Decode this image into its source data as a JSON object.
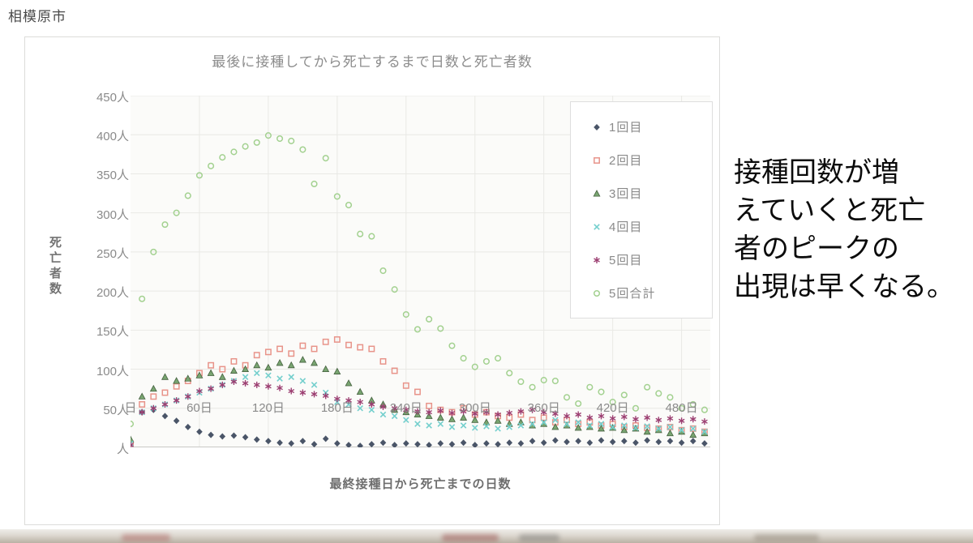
{
  "page": {
    "header_label": "相模原市"
  },
  "annotation": {
    "text": "接種回数が増\nえていくと死亡\n者のピークの\n出現は早くなる。"
  },
  "chart_data": {
    "type": "scatter",
    "title": "最後に接種してから死亡するまで日数と死亡者数",
    "xlabel": "最終接種日から死亡までの日数",
    "ylabel": "死亡者数",
    "xlim": [
      0,
      505
    ],
    "ylim": [
      0,
      450
    ],
    "grid": true,
    "legend_position": "right-top",
    "x_ticks": [
      {
        "value": 0,
        "label": "日"
      },
      {
        "value": 60,
        "label": "60日"
      },
      {
        "value": 120,
        "label": "120日"
      },
      {
        "value": 180,
        "label": "180日"
      },
      {
        "value": 240,
        "label": "240日"
      },
      {
        "value": 300,
        "label": "300日"
      },
      {
        "value": 360,
        "label": "360日"
      },
      {
        "value": 420,
        "label": "420日"
      },
      {
        "value": 480,
        "label": "480日"
      }
    ],
    "y_ticks": [
      {
        "value": 450,
        "label": "450人"
      },
      {
        "value": 400,
        "label": "400人"
      },
      {
        "value": 350,
        "label": "350人"
      },
      {
        "value": 300,
        "label": "300人"
      },
      {
        "value": 250,
        "label": "250人"
      },
      {
        "value": 200,
        "label": "200人"
      },
      {
        "value": 150,
        "label": "150人"
      },
      {
        "value": 100,
        "label": "100人"
      },
      {
        "value": 50,
        "label": "50人"
      },
      {
        "value": 0,
        "label": "人"
      }
    ],
    "x_start": 0,
    "x_step": 10,
    "series": [
      {
        "name": "1回目",
        "marker": "diamond",
        "color": "#4a5568",
        "values": [
          8,
          45,
          48,
          40,
          34,
          26,
          20,
          16,
          14,
          15,
          13,
          10,
          8,
          6,
          5,
          8,
          4,
          11,
          5,
          3,
          2,
          4,
          6,
          3,
          5,
          4,
          3,
          5,
          4,
          6,
          3,
          5,
          4,
          6,
          5,
          8,
          6,
          9,
          7,
          8,
          6,
          9,
          7,
          8,
          6,
          9,
          7,
          8,
          6,
          8,
          5,
          7
        ]
      },
      {
        "name": "2回目",
        "marker": "square",
        "color": "#e8948a",
        "values": [
          5,
          55,
          65,
          70,
          78,
          85,
          95,
          105,
          100,
          110,
          105,
          118,
          122,
          126,
          120,
          130,
          126,
          135,
          138,
          131,
          128,
          126,
          110,
          98,
          79,
          71,
          53,
          48,
          45,
          50,
          42,
          45,
          40,
          38,
          42,
          35,
          38,
          32,
          35,
          30,
          32,
          28,
          30,
          26,
          28,
          25,
          24,
          26,
          22,
          24,
          20,
          22
        ]
      },
      {
        "name": "3回目",
        "marker": "triangle",
        "color": "#79a571",
        "values": [
          10,
          65,
          75,
          90,
          85,
          88,
          92,
          95,
          90,
          98,
          100,
          105,
          102,
          108,
          105,
          112,
          108,
          100,
          97,
          82,
          71,
          60,
          55,
          48,
          45,
          42,
          40,
          38,
          36,
          38,
          35,
          32,
          34,
          30,
          32,
          28,
          30,
          26,
          28,
          25,
          26,
          24,
          25,
          22,
          24,
          20,
          22,
          18,
          20,
          16,
          18,
          15
        ]
      },
      {
        "name": "4回目",
        "marker": "x",
        "color": "#74cfcd",
        "values": [
          5,
          45,
          50,
          55,
          60,
          65,
          70,
          75,
          80,
          85,
          90,
          95,
          92,
          88,
          90,
          85,
          80,
          70,
          58,
          55,
          50,
          48,
          42,
          40,
          35,
          30,
          28,
          30,
          26,
          28,
          25,
          27,
          24,
          26,
          28,
          30,
          32,
          35,
          30,
          32,
          28,
          30,
          26,
          28,
          25,
          27,
          24,
          26,
          22,
          24,
          20,
          22
        ]
      },
      {
        "name": "5回目",
        "marker": "asterisk",
        "color": "#9c3f72",
        "values": [
          3,
          45,
          50,
          55,
          60,
          65,
          72,
          75,
          80,
          84,
          82,
          80,
          78,
          76,
          72,
          70,
          68,
          66,
          62,
          60,
          58,
          55,
          52,
          50,
          48,
          46,
          45,
          47,
          44,
          46,
          43,
          45,
          42,
          44,
          46,
          48,
          45,
          43,
          40,
          42,
          38,
          40,
          37,
          39,
          36,
          38,
          35,
          37,
          34,
          36,
          33,
          35
        ]
      },
      {
        "name": "5回合計",
        "marker": "circle",
        "color": "#a3d190",
        "values": [
          30,
          190,
          250,
          285,
          300,
          322,
          348,
          360,
          371,
          378,
          385,
          390,
          399,
          395,
          392,
          381,
          337,
          370,
          321,
          310,
          273,
          270,
          226,
          202,
          170,
          151,
          164,
          152,
          130,
          114,
          103,
          110,
          114,
          95,
          84,
          77,
          86,
          85,
          64,
          56,
          77,
          71,
          58,
          67,
          50,
          77,
          69,
          64,
          50,
          55,
          48,
          52
        ]
      }
    ]
  },
  "colors": {
    "grid": "#e9e9e5",
    "plot_bg": "#fbfbf9",
    "axis_line": "#c9c9c6"
  }
}
